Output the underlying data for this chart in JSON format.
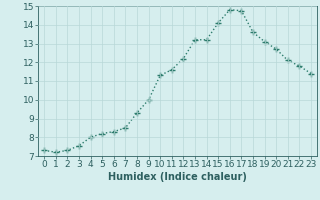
{
  "x": [
    0,
    1,
    2,
    3,
    4,
    5,
    6,
    7,
    8,
    9,
    10,
    11,
    12,
    13,
    14,
    15,
    16,
    17,
    18,
    19,
    20,
    21,
    22,
    23
  ],
  "y": [
    7.3,
    7.2,
    7.3,
    7.55,
    8.0,
    8.2,
    8.3,
    8.5,
    9.3,
    10.0,
    11.3,
    11.6,
    12.2,
    13.2,
    13.2,
    14.1,
    14.8,
    14.75,
    13.6,
    13.1,
    12.7,
    12.1,
    11.8,
    11.4
  ],
  "line_color": "#2e7d6e",
  "marker": "+",
  "marker_size": 4,
  "line_width": 1.0,
  "bg_color": "#d6eeee",
  "grid_color": "#b8d8d8",
  "xlabel": "Humidex (Indice chaleur)",
  "xlim": [
    -0.5,
    23.5
  ],
  "ylim": [
    7,
    15
  ],
  "xticks": [
    0,
    1,
    2,
    3,
    4,
    5,
    6,
    7,
    8,
    9,
    10,
    11,
    12,
    13,
    14,
    15,
    16,
    17,
    18,
    19,
    20,
    21,
    22,
    23
  ],
  "yticks": [
    7,
    8,
    9,
    10,
    11,
    12,
    13,
    14,
    15
  ],
  "xlabel_fontsize": 7,
  "tick_fontsize": 6.5,
  "axes_color": "#2e6060"
}
